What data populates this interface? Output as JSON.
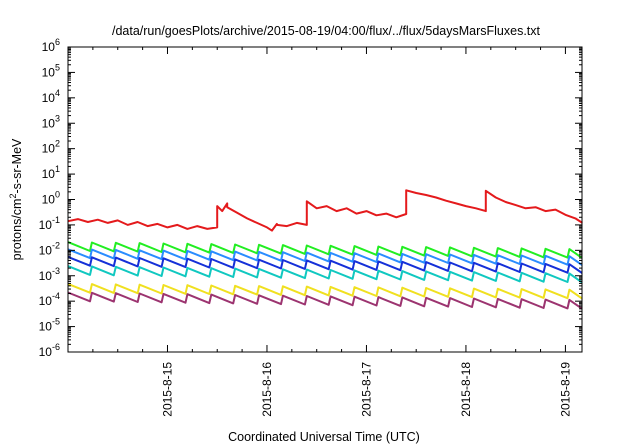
{
  "chart_data": {
    "type": "line",
    "title": "/data/run/goesPlots/archive/2015-08-19/04:00/flux/../flux/5daysMarsFluxes.txt",
    "xlabel": "Coordinated Universal Time (UTC)",
    "ylabel": "protons/cm²-s-sr-MeV",
    "ylabel_parts": {
      "pre": "protons/cm",
      "sup": "2",
      "post": "-s-sr-MeV"
    },
    "yscale": "log",
    "ylim_exponents": [
      -6,
      6
    ],
    "y_tick_labels": [
      {
        "base": "10",
        "exp": "-6"
      },
      {
        "base": "10",
        "exp": "-5"
      },
      {
        "base": "10",
        "exp": "-4"
      },
      {
        "base": "10",
        "exp": "-3"
      },
      {
        "base": "10",
        "exp": "-2"
      },
      {
        "base": "10",
        "exp": "-1"
      },
      {
        "base": "10",
        "exp": "0"
      },
      {
        "base": "10",
        "exp": "1"
      },
      {
        "base": "10",
        "exp": "2"
      },
      {
        "base": "10",
        "exp": "3"
      },
      {
        "base": "10",
        "exp": "4"
      },
      {
        "base": "10",
        "exp": "5"
      },
      {
        "base": "10",
        "exp": "6"
      }
    ],
    "xlim": [
      "2015-08-14T00:00",
      "2015-08-19T04:00"
    ],
    "x_tick_labels": [
      "2015-8-15",
      "2015-8-16",
      "2015-8-17",
      "2015-8-18",
      "2015-8-19"
    ],
    "x_tick_dates": [
      "2015-08-15",
      "2015-08-16",
      "2015-08-17",
      "2015-08-18",
      "2015-08-19"
    ],
    "grid": false,
    "legend": false,
    "series": [
      {
        "color": "#e41a1c",
        "mode": "events",
        "days_from_start": [
          0.0,
          0.1,
          0.2,
          0.3,
          0.4,
          0.5,
          0.6,
          0.7,
          0.8,
          0.9,
          1.0,
          1.1,
          1.2,
          1.3,
          1.4,
          1.5,
          1.5,
          1.55,
          1.6,
          1.6,
          1.7,
          1.8,
          1.9,
          2.0,
          2.05,
          2.1,
          2.1,
          2.2,
          2.3,
          2.4,
          2.4,
          2.4,
          2.5,
          2.6,
          2.7,
          2.8,
          2.9,
          3.0,
          3.1,
          3.2,
          3.3,
          3.4,
          3.4,
          3.5,
          3.6,
          3.7,
          3.8,
          3.9,
          4.0,
          4.1,
          4.2,
          4.2,
          4.3,
          4.4,
          4.5,
          4.6,
          4.7,
          4.8,
          4.9,
          5.0,
          5.1,
          5.17
        ],
        "values": [
          0.14,
          0.17,
          0.13,
          0.16,
          0.12,
          0.15,
          0.1,
          0.13,
          0.09,
          0.11,
          0.08,
          0.1,
          0.07,
          0.09,
          0.07,
          0.08,
          0.55,
          0.35,
          0.7,
          0.5,
          0.3,
          0.18,
          0.12,
          0.08,
          0.06,
          0.11,
          0.1,
          0.09,
          0.12,
          0.1,
          0.85,
          0.85,
          0.45,
          0.55,
          0.35,
          0.45,
          0.28,
          0.35,
          0.24,
          0.28,
          0.2,
          0.27,
          2.3,
          1.8,
          1.5,
          1.2,
          0.9,
          0.7,
          0.55,
          0.45,
          0.35,
          2.2,
          1.2,
          0.8,
          0.6,
          0.45,
          0.5,
          0.35,
          0.4,
          0.25,
          0.18,
          0.12
        ]
      },
      {
        "color": "#22ee22",
        "mode": "sawtooth",
        "peaks": [
          0.021,
          0.011
        ]
      },
      {
        "color": "#2a8cff",
        "mode": "sawtooth",
        "peaks": [
          0.011,
          0.0058
        ]
      },
      {
        "color": "#1530d8",
        "mode": "sawtooth",
        "peaks": [
          0.0055,
          0.0028
        ]
      },
      {
        "color": "#10c8c0",
        "mode": "sawtooth",
        "peaks": [
          0.0024,
          0.0012
        ]
      },
      {
        "color": "#f0e020",
        "mode": "sawtooth",
        "peaks": [
          0.00048,
          0.00028
        ]
      },
      {
        "color": "#9c3470",
        "mode": "sawtooth",
        "peaks": [
          0.00022,
          0.00011
        ]
      }
    ]
  }
}
